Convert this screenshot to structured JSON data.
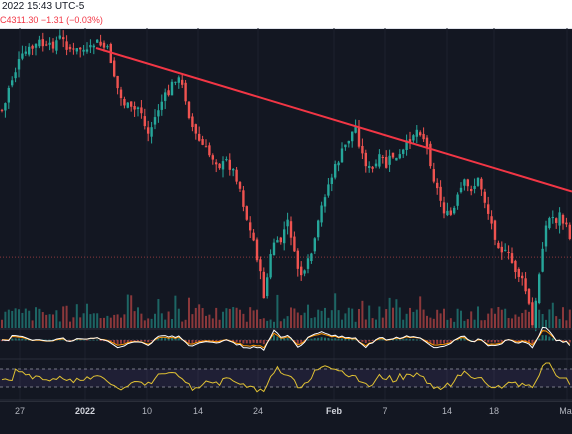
{
  "header": {
    "datetime": "2022 15:43 UTC-5",
    "price_prefix": "C",
    "price": "4311.30",
    "change": "−1.31 (−0.03%)"
  },
  "colors": {
    "background": "#131722",
    "up": "#26a69a",
    "down": "#ef5350",
    "trendline": "#f23645",
    "macd_line": "#ffffff",
    "signal_line": "#ff9800",
    "rsi_line": "#e1c233"
  },
  "chart_data": [
    {
      "type": "candlestick",
      "xlabel": "",
      "ylabel": "",
      "x_ticks": [
        "27",
        "2022",
        "10",
        "14",
        "24",
        "Feb",
        "7",
        "14",
        "18",
        "Mar"
      ],
      "close_path": [
        [
          0,
          0.3
        ],
        [
          4,
          0.31
        ],
        [
          8,
          0.2
        ],
        [
          13,
          0.14
        ],
        [
          19,
          0.07
        ],
        [
          26,
          0.02
        ],
        [
          33,
          0.0
        ],
        [
          40,
          -0.03
        ],
        [
          47,
          0.01
        ],
        [
          53,
          -0.02
        ],
        [
          60,
          -0.05
        ],
        [
          67,
          -0.01
        ],
        [
          74,
          0.02
        ],
        [
          81,
          0.0
        ],
        [
          88,
          0.03
        ],
        [
          95,
          -0.03
        ],
        [
          102,
          -0.01
        ],
        [
          109,
          0.02
        ],
        [
          115,
          0.15
        ],
        [
          120,
          0.24
        ],
        [
          126,
          0.28
        ],
        [
          133,
          0.31
        ],
        [
          140,
          0.28
        ],
        [
          147,
          0.43
        ],
        [
          152,
          0.38
        ],
        [
          158,
          0.3
        ],
        [
          163,
          0.25
        ],
        [
          169,
          0.22
        ],
        [
          175,
          0.14
        ],
        [
          181,
          0.17
        ],
        [
          186,
          0.25
        ],
        [
          191,
          0.37
        ],
        [
          197,
          0.44
        ],
        [
          203,
          0.48
        ],
        [
          209,
          0.52
        ],
        [
          215,
          0.54
        ],
        [
          221,
          0.58
        ],
        [
          227,
          0.55
        ],
        [
          233,
          0.6
        ],
        [
          238,
          0.64
        ],
        [
          243,
          0.75
        ],
        [
          249,
          0.88
        ],
        [
          255,
          0.96
        ],
        [
          260,
          1.1
        ],
        [
          264,
          1.21
        ],
        [
          269,
          1.07
        ],
        [
          273,
          0.94
        ],
        [
          279,
          0.97
        ],
        [
          284,
          0.89
        ],
        [
          289,
          0.84
        ],
        [
          294,
          1.01
        ],
        [
          299,
          1.09
        ],
        [
          304,
          1.12
        ],
        [
          309,
          1.03
        ],
        [
          314,
          0.97
        ],
        [
          319,
          0.84
        ],
        [
          324,
          0.72
        ],
        [
          329,
          0.66
        ],
        [
          334,
          0.6
        ],
        [
          339,
          0.54
        ],
        [
          345,
          0.48
        ],
        [
          351,
          0.42
        ],
        [
          356,
          0.38
        ],
        [
          361,
          0.51
        ],
        [
          366,
          0.56
        ],
        [
          371,
          0.61
        ],
        [
          376,
          0.57
        ],
        [
          381,
          0.53
        ],
        [
          386,
          0.58
        ],
        [
          392,
          0.52
        ],
        [
          397,
          0.55
        ],
        [
          403,
          0.51
        ],
        [
          408,
          0.46
        ],
        [
          414,
          0.41
        ],
        [
          419,
          0.39
        ],
        [
          424,
          0.44
        ],
        [
          429,
          0.52
        ],
        [
          434,
          0.64
        ],
        [
          439,
          0.72
        ],
        [
          444,
          0.79
        ],
        [
          449,
          0.83
        ],
        [
          454,
          0.79
        ],
        [
          459,
          0.71
        ],
        [
          464,
          0.66
        ],
        [
          469,
          0.69
        ],
        [
          474,
          0.67
        ],
        [
          479,
          0.64
        ],
        [
          484,
          0.73
        ],
        [
          489,
          0.82
        ],
        [
          494,
          0.9
        ],
        [
          499,
          0.96
        ],
        [
          504,
          1.0
        ],
        [
          509,
          1.02
        ],
        [
          514,
          1.07
        ],
        [
          519,
          1.11
        ],
        [
          524,
          1.16
        ],
        [
          528,
          1.22
        ],
        [
          532,
          1.37
        ],
        [
          536,
          1.24
        ],
        [
          540,
          1.06
        ],
        [
          544,
          0.9
        ],
        [
          548,
          0.84
        ],
        [
          552,
          0.82
        ],
        [
          556,
          0.84
        ],
        [
          560,
          0.81
        ],
        [
          564,
          0.86
        ],
        [
          568,
          0.9
        ],
        [
          572,
          0.93
        ]
      ],
      "trendline": {
        "from": [
          96,
          0.0
        ],
        "to": [
          572,
          0.7
        ]
      },
      "reference_level": 1.02
    },
    {
      "type": "bar",
      "series": [
        {
          "values": "volume"
        }
      ]
    },
    {
      "type": "line",
      "series": [
        {
          "values": "macd"
        },
        {
          "values": "signal"
        }
      ]
    },
    {
      "type": "line",
      "series": [
        {
          "values": "rsi"
        }
      ]
    }
  ]
}
